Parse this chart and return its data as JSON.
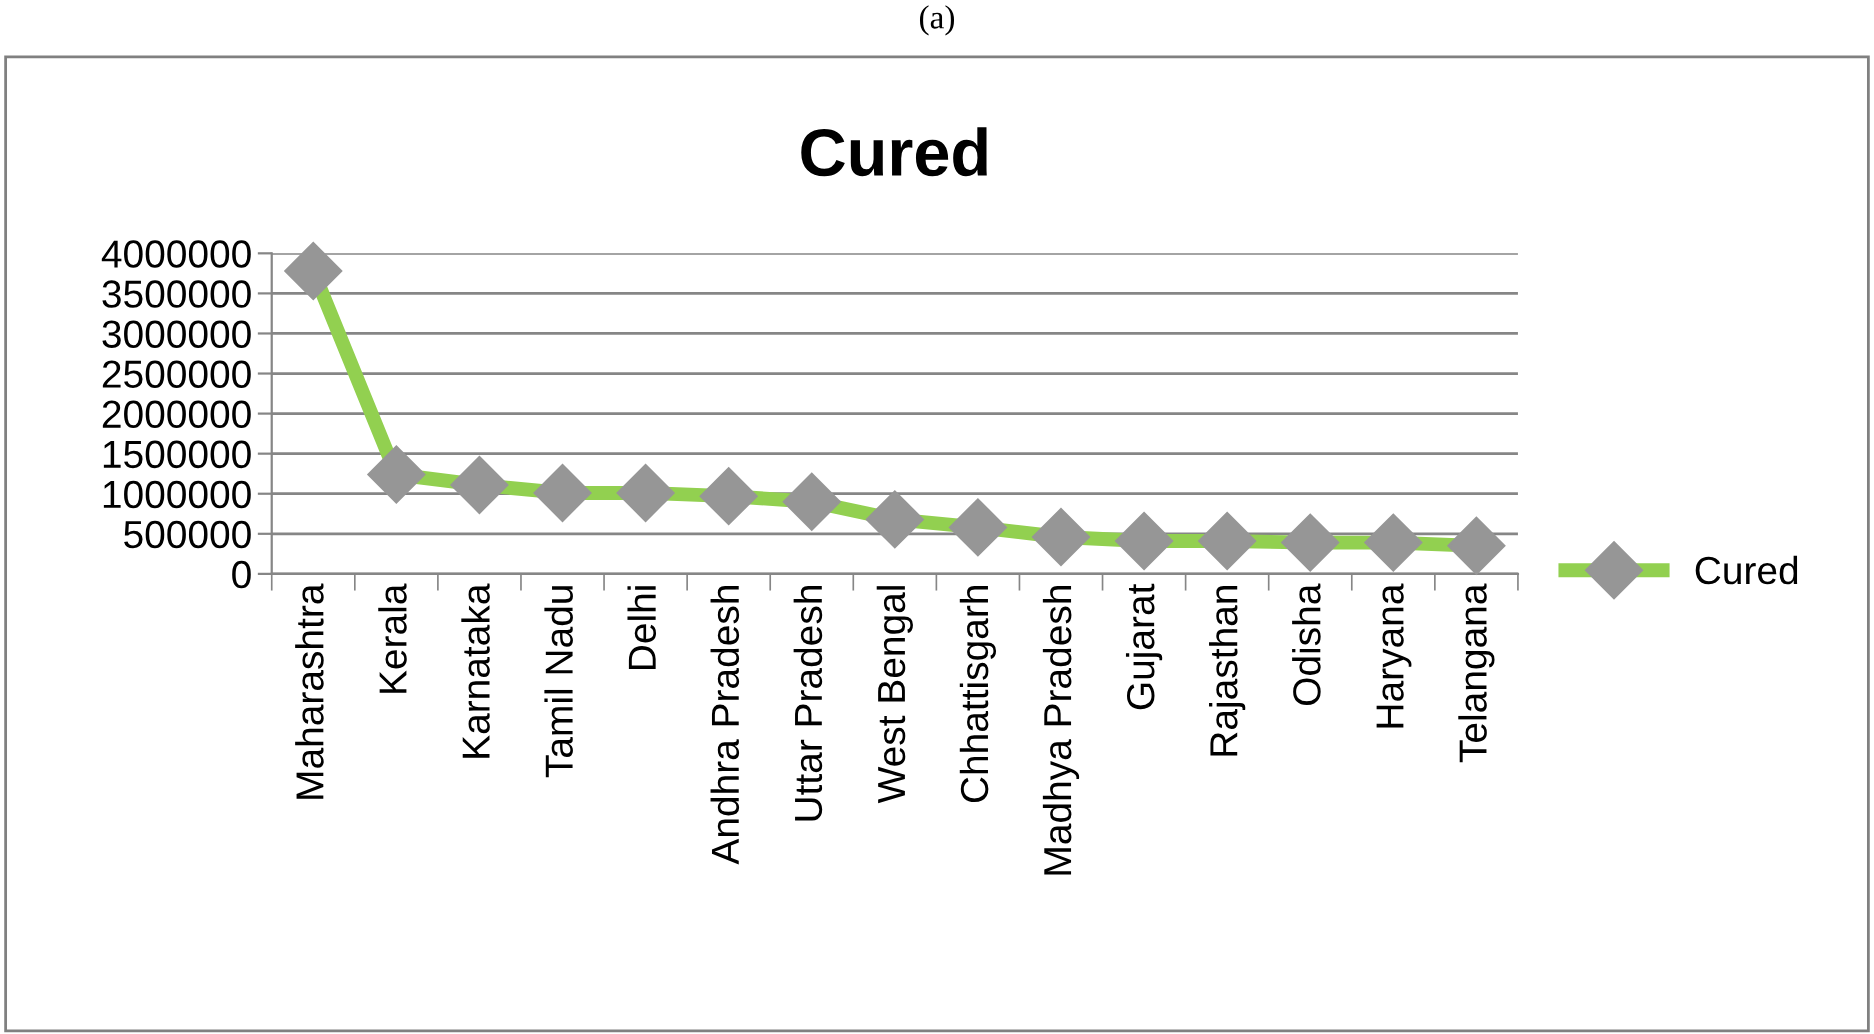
{
  "chart_data": {
    "type": "line",
    "title": "Cured",
    "categories": [
      "Maharashtra",
      "Kerala",
      "Karnataka",
      "Tamil Nadu",
      "Delhi",
      "Andhra Pradesh",
      "Uttar Pradesh",
      "West Bengal",
      "Chhattisgarh",
      "Madhya Pradesh",
      "Gujarat",
      "Rajasthan",
      "Odisha",
      "Haryana",
      "Telangana"
    ],
    "series": [
      {
        "name": "Cured",
        "color": "#92d050",
        "values": [
          3780000,
          1240000,
          1110000,
          1010000,
          1010000,
          970000,
          900000,
          680000,
          580000,
          460000,
          410000,
          410000,
          390000,
          390000,
          350000
        ]
      }
    ],
    "ylim": [
      0,
      4000000
    ],
    "yticks": [
      0,
      500000,
      1000000,
      1500000,
      2000000,
      2500000,
      3000000,
      3500000,
      4000000
    ],
    "grid": "y",
    "legend": "right",
    "marker": "diamond",
    "line_style": "solid",
    "annotations": [
      "(a)"
    ]
  }
}
